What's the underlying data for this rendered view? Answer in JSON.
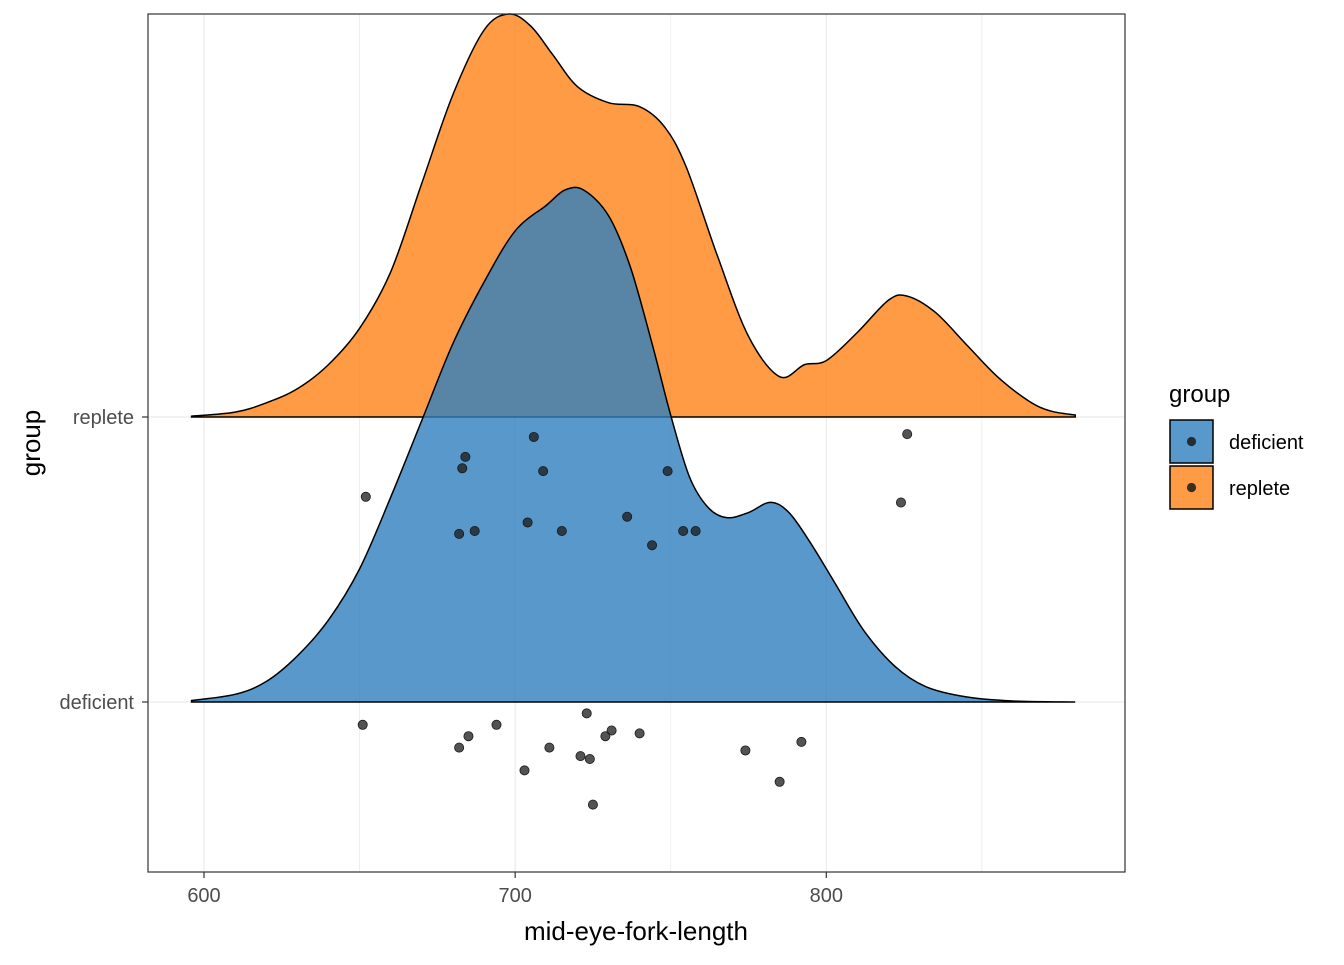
{
  "chart_data": {
    "type": "density_ridgeline_with_jittered_points",
    "title": "",
    "xlabel": "mid-eye-fork-length",
    "ylabel": "group",
    "xlim": [
      582,
      896
    ],
    "x_ticks": [
      600,
      700,
      800
    ],
    "x_minor_gridlines": [
      650,
      750,
      850
    ],
    "grid": true,
    "legend": {
      "title": "group",
      "position": "right",
      "entries": [
        "deficient",
        "replete"
      ]
    },
    "categories": [
      "deficient",
      "replete"
    ],
    "colors": {
      "deficient": "#2E7EBE",
      "replete": "#FF8117",
      "outline": "#000000",
      "point": "#1A1A1A",
      "grid": "#EBEBEB"
    },
    "series": [
      {
        "name": "replete",
        "density_curve": [
          [
            596,
            0.002
          ],
          [
            610,
            0.012
          ],
          [
            620,
            0.035
          ],
          [
            630,
            0.07
          ],
          [
            640,
            0.13
          ],
          [
            650,
            0.22
          ],
          [
            660,
            0.36
          ],
          [
            670,
            0.58
          ],
          [
            680,
            0.8
          ],
          [
            690,
            0.96
          ],
          [
            698,
            1.0
          ],
          [
            705,
            0.97
          ],
          [
            712,
            0.9
          ],
          [
            720,
            0.82
          ],
          [
            730,
            0.78
          ],
          [
            740,
            0.77
          ],
          [
            748,
            0.72
          ],
          [
            755,
            0.62
          ],
          [
            765,
            0.4
          ],
          [
            775,
            0.2
          ],
          [
            785,
            0.1
          ],
          [
            793,
            0.13
          ],
          [
            800,
            0.14
          ],
          [
            810,
            0.21
          ],
          [
            820,
            0.29
          ],
          [
            826,
            0.3
          ],
          [
            835,
            0.26
          ],
          [
            845,
            0.18
          ],
          [
            855,
            0.1
          ],
          [
            865,
            0.04
          ],
          [
            872,
            0.015
          ],
          [
            880,
            0.005
          ]
        ],
        "points": [
          [
            652,
            0.72
          ],
          [
            684,
            0.86
          ],
          [
            683,
            0.82
          ],
          [
            682,
            0.59
          ],
          [
            687,
            0.6
          ],
          [
            704,
            0.63
          ],
          [
            706,
            0.93
          ],
          [
            709,
            0.81
          ],
          [
            715,
            0.6
          ],
          [
            736,
            0.65
          ],
          [
            744,
            0.55
          ],
          [
            749,
            0.81
          ],
          [
            754,
            0.6
          ],
          [
            758,
            0.6
          ],
          [
            824,
            0.7
          ],
          [
            826,
            0.94
          ]
        ]
      },
      {
        "name": "deficient",
        "density_curve": [
          [
            596,
            0.003
          ],
          [
            610,
            0.015
          ],
          [
            620,
            0.04
          ],
          [
            630,
            0.09
          ],
          [
            640,
            0.16
          ],
          [
            650,
            0.26
          ],
          [
            660,
            0.4
          ],
          [
            670,
            0.55
          ],
          [
            680,
            0.7
          ],
          [
            690,
            0.82
          ],
          [
            700,
            0.92
          ],
          [
            710,
            0.97
          ],
          [
            716,
            1.0
          ],
          [
            722,
            1.0
          ],
          [
            730,
            0.95
          ],
          [
            737,
            0.85
          ],
          [
            744,
            0.7
          ],
          [
            750,
            0.56
          ],
          [
            756,
            0.44
          ],
          [
            762,
            0.38
          ],
          [
            768,
            0.36
          ],
          [
            775,
            0.37
          ],
          [
            782,
            0.39
          ],
          [
            788,
            0.37
          ],
          [
            795,
            0.31
          ],
          [
            803,
            0.23
          ],
          [
            812,
            0.14
          ],
          [
            822,
            0.07
          ],
          [
            832,
            0.03
          ],
          [
            845,
            0.01
          ],
          [
            860,
            0.002
          ],
          [
            880,
            0.0
          ]
        ],
        "points": [
          [
            651,
            0.92
          ],
          [
            682,
            0.84
          ],
          [
            685,
            0.88
          ],
          [
            694,
            0.92
          ],
          [
            703,
            0.76
          ],
          [
            711,
            0.84
          ],
          [
            721,
            0.81
          ],
          [
            723,
            0.96
          ],
          [
            724,
            0.8
          ],
          [
            725,
            0.64
          ],
          [
            729,
            0.88
          ],
          [
            731,
            0.9
          ],
          [
            740,
            0.89
          ],
          [
            774,
            0.83
          ],
          [
            785,
            0.72
          ],
          [
            792,
            0.86
          ]
        ]
      }
    ]
  }
}
